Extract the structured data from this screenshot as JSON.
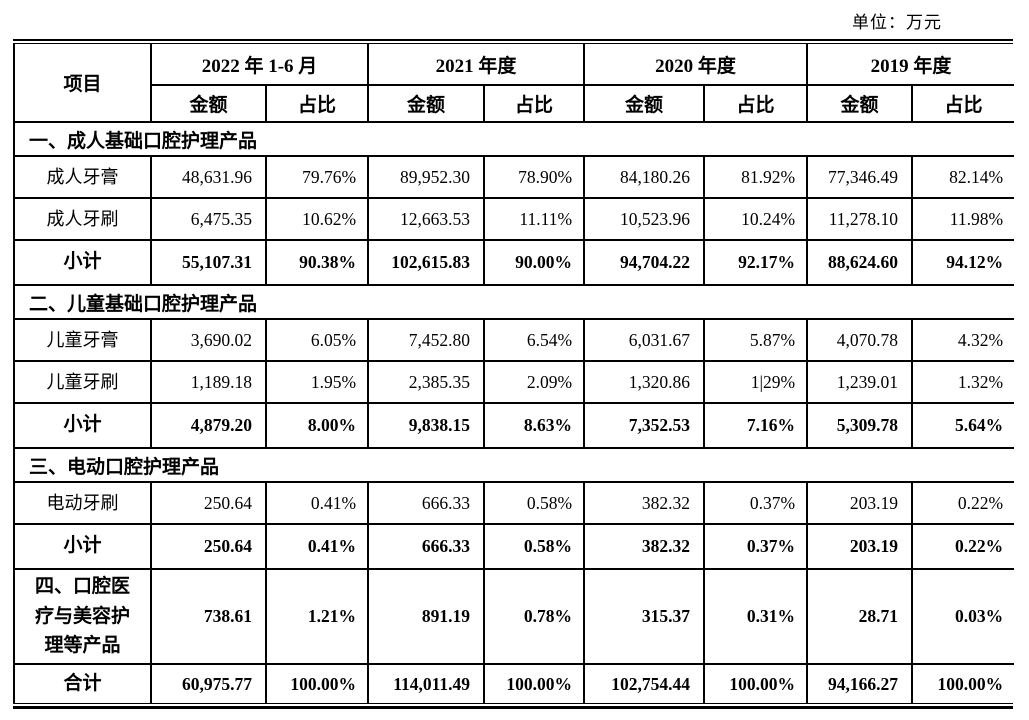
{
  "unit_label": "单位：万元",
  "table": {
    "col_header_item": "项目",
    "sub_headers": {
      "amount": "金额",
      "ratio": "占比"
    },
    "periods": [
      {
        "label": "2022 年 1-6 月"
      },
      {
        "label": "2021 年度"
      },
      {
        "label": "2020 年度"
      },
      {
        "label": "2019 年度"
      }
    ],
    "rows": [
      {
        "type": "section",
        "label": "一、成人基础口腔护理产品"
      },
      {
        "type": "data",
        "label": "成人牙膏",
        "values": [
          "48,631.96",
          "79.76%",
          "89,952.30",
          "78.90%",
          "84,180.26",
          "81.92%",
          "77,346.49",
          "82.14%"
        ]
      },
      {
        "type": "data",
        "label": "成人牙刷",
        "values": [
          "6,475.35",
          "10.62%",
          "12,663.53",
          "11.11%",
          "10,523.96",
          "10.24%",
          "11,278.10",
          "11.98%"
        ]
      },
      {
        "type": "subtotal",
        "label": "小计",
        "values": [
          "55,107.31",
          "90.38%",
          "102,615.83",
          "90.00%",
          "94,704.22",
          "92.17%",
          "88,624.60",
          "94.12%"
        ]
      },
      {
        "type": "section",
        "label": "二、儿童基础口腔护理产品"
      },
      {
        "type": "data",
        "label": "儿童牙膏",
        "values": [
          "3,690.02",
          "6.05%",
          "7,452.80",
          "6.54%",
          "6,031.67",
          "5.87%",
          "4,070.78",
          "4.32%"
        ]
      },
      {
        "type": "data",
        "label": "儿童牙刷",
        "values": [
          "1,189.18",
          "1.95%",
          "2,385.35",
          "2.09%",
          "1,320.86",
          "1|29%",
          "1,239.01",
          "1.32%"
        ]
      },
      {
        "type": "subtotal",
        "label": "小计",
        "values": [
          "4,879.20",
          "8.00%",
          "9,838.15",
          "8.63%",
          "7,352.53",
          "7.16%",
          "5,309.78",
          "5.64%"
        ]
      },
      {
        "type": "section",
        "label": "三、电动口腔护理产品"
      },
      {
        "type": "data",
        "label": "电动牙刷",
        "values": [
          "250.64",
          "0.41%",
          "666.33",
          "0.58%",
          "382.32",
          "0.37%",
          "203.19",
          "0.22%"
        ]
      },
      {
        "type": "subtotal",
        "label": "小计",
        "values": [
          "250.64",
          "0.41%",
          "666.33",
          "0.58%",
          "382.32",
          "0.37%",
          "203.19",
          "0.22%"
        ]
      },
      {
        "type": "four",
        "label": "四、口腔医\n疗与美容护\n理等产品",
        "values": [
          "738.61",
          "1.21%",
          "891.19",
          "0.78%",
          "315.37",
          "0.31%",
          "28.71",
          "0.03%"
        ]
      },
      {
        "type": "total",
        "label": "合计",
        "values": [
          "60,975.77",
          "100.00%",
          "114,011.49",
          "100.00%",
          "102,754.44",
          "100.00%",
          "94,166.27",
          "100.00%"
        ]
      }
    ]
  }
}
